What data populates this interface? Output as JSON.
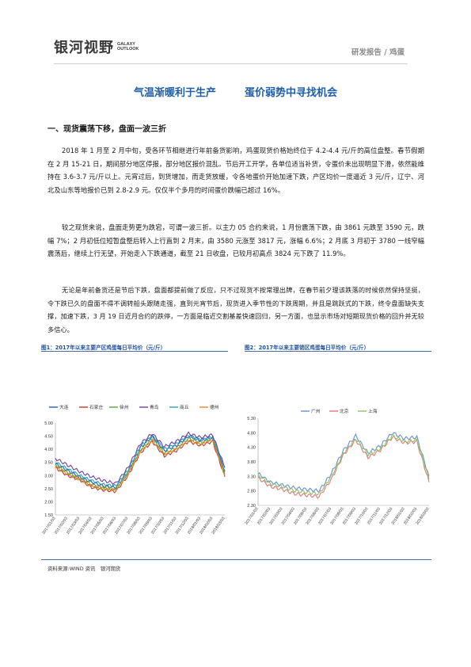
{
  "header": {
    "logo_cn": "银河视野",
    "logo_en_line1": "GALAXY",
    "logo_en_line2": "OUTLOOK",
    "breadcrumb": "研发报告 / 鸡蛋"
  },
  "title": {
    "part1": "气温渐暖利于生产",
    "part2": "蛋价弱势中寻找机会"
  },
  "section_heading": "一、现货震荡下移，盘面一波三折",
  "paragraphs": [
    "2018 年 1 月至 2 月中旬，受各环节相继进行年前备货影响，鸡蛋现货价格始终位于 4.2-4.4 元/斤的高位盘整。春节假期在 2 月 15-21 日，期间部分地区停报，部分地区报价混乱。节后开工开学，各单位适当补货，令蛋价未出现明显下滑，依然能维持在 3.6-3.7 元/斤以上。元宵过后，到货增加，而走货放缓，令各地蛋价开始加速下跌，产区均价一度逼近 3 元/斤，辽宁、河北及山东等地报价已到 2.8-2.9 元。仅仅半个多月的时间蛋价跌幅已超过 16%。",
    "较之现货来说，盘面走势更为跌宕，可谓一波三折。以主力 05 合约来说，1 月份震荡下跌，由 3861 元跌至 3590 元，跌幅 7%；2 月初低位短暂盘整后转入上行直到 2 月末，由 3580 元涨至 3817 元，涨幅 6.6%；2 月底 3 月初于 3780 一线窄幅震荡后，继续上行无望，开始走入下跌通道，截至 21 日收盘，已较月初高点 3824 元下跌了 11.9%。",
    "无论是年前备货还是节后下跌，盘面都提前做了反应，只不过现货不按常理出牌，在春节前夕理该跌落的时候依然保持坚挺，令下跌已久的盘面不得不调转船头跟随走强，直到元宵节后，现货进入季节性的下跌周期，并且是跳跃式的下跌，终令盘面缺失支撑，加速下跌，3 月 19 日近月合约的跌停，一方面是临近交割基差快速回归，另一方面，也显示市场对短期现货价格的回升并无较多信心。"
  ],
  "figure1": {
    "caption": "图1：2017年以来主要产区鸡蛋每日平均价（元/斤）"
  },
  "figure2": {
    "caption": "图2：2017年以来主要销区鸡蛋每日平均价（元/斤）"
  },
  "source": "资料来源:WIND 资讯　银河期货",
  "chart_data": [
    {
      "type": "line",
      "title": "",
      "ylim": [
        1.5,
        5.0
      ],
      "yticks": [
        "1.50",
        "2.00",
        "2.50",
        "3.00",
        "3.50",
        "4.00",
        "4.50",
        "5.00"
      ],
      "x_labels": [
        "2017/01/03",
        "2017/02/03",
        "2017/03/03",
        "2017/04/03",
        "2017/05/03",
        "2017/06/03",
        "2017/07/03",
        "2017/08/03",
        "2017/09/03",
        "2017/10/03",
        "2017/11/03",
        "2017/12/03",
        "2018/01/03",
        "2018/02/03",
        "2018/03/03"
      ],
      "legend_position": "top",
      "grid": false,
      "series": [
        {
          "name": "大连",
          "color": "#2b57b3",
          "values": [
            3.45,
            3.2,
            2.95,
            2.75,
            2.6,
            2.55,
            3.15,
            4.05,
            4.5,
            3.95,
            4.15,
            4.5,
            4.35,
            4.45,
            3.15
          ]
        },
        {
          "name": "石家庄",
          "color": "#c0392b",
          "values": [
            3.3,
            3.0,
            2.85,
            2.55,
            2.45,
            2.4,
            3.0,
            3.85,
            4.3,
            3.75,
            3.95,
            4.3,
            4.15,
            4.3,
            2.95
          ]
        },
        {
          "name": "徐州",
          "color": "#5fa33a",
          "values": [
            3.4,
            3.1,
            2.9,
            2.65,
            2.5,
            2.5,
            3.1,
            3.95,
            4.4,
            3.85,
            4.05,
            4.4,
            4.25,
            4.4,
            3.05
          ]
        },
        {
          "name": "青岛",
          "color": "#6d3fa0",
          "values": [
            3.65,
            3.4,
            3.15,
            2.95,
            2.8,
            2.7,
            3.3,
            4.2,
            4.6,
            4.1,
            4.3,
            4.6,
            4.45,
            4.55,
            3.3
          ]
        },
        {
          "name": "商丘",
          "color": "#2aa0b8",
          "values": [
            3.5,
            3.25,
            3.0,
            2.8,
            2.65,
            2.6,
            3.2,
            4.1,
            4.5,
            4.0,
            4.2,
            4.5,
            4.35,
            4.45,
            3.2
          ]
        },
        {
          "name": "德州",
          "color": "#e08a2b",
          "values": [
            3.35,
            3.05,
            2.85,
            2.6,
            2.5,
            2.45,
            3.05,
            3.9,
            4.35,
            3.8,
            4.0,
            4.35,
            4.2,
            4.35,
            3.0
          ]
        }
      ]
    },
    {
      "type": "line",
      "title": "",
      "ylim": [
        2.3,
        5.3
      ],
      "yticks": [
        "2.30",
        "2.80",
        "3.30",
        "3.80",
        "4.30",
        "4.80",
        "5.30"
      ],
      "x_labels": [
        "2017/01/03",
        "2017/02/03",
        "2017/03/03",
        "2017/04/03",
        "2017/05/03",
        "2017/06/03",
        "2017/07/03",
        "2017/08/03",
        "2017/09/03",
        "2017/10/03",
        "2017/11/03",
        "2017/12/03",
        "2018/01/03",
        "2018/02/03",
        "2018/03/03"
      ],
      "legend_position": "top",
      "grid": false,
      "series": [
        {
          "name": "广州",
          "color": "#6a8fd8",
          "values": [
            3.4,
            3.1,
            3.0,
            2.9,
            2.85,
            2.8,
            3.4,
            4.2,
            4.7,
            4.1,
            4.35,
            4.8,
            4.6,
            4.65,
            3.3
          ]
        },
        {
          "name": "北京",
          "color": "#e07a7a",
          "values": [
            3.25,
            2.95,
            2.85,
            2.7,
            2.65,
            2.6,
            3.2,
            4.05,
            4.55,
            3.95,
            4.2,
            4.65,
            4.45,
            4.5,
            3.1
          ]
        },
        {
          "name": "上海",
          "color": "#8cc36a",
          "values": [
            3.35,
            3.05,
            2.95,
            2.8,
            2.75,
            2.7,
            3.3,
            4.1,
            4.6,
            4.05,
            4.25,
            4.7,
            4.5,
            4.55,
            3.2
          ]
        }
      ]
    }
  ]
}
